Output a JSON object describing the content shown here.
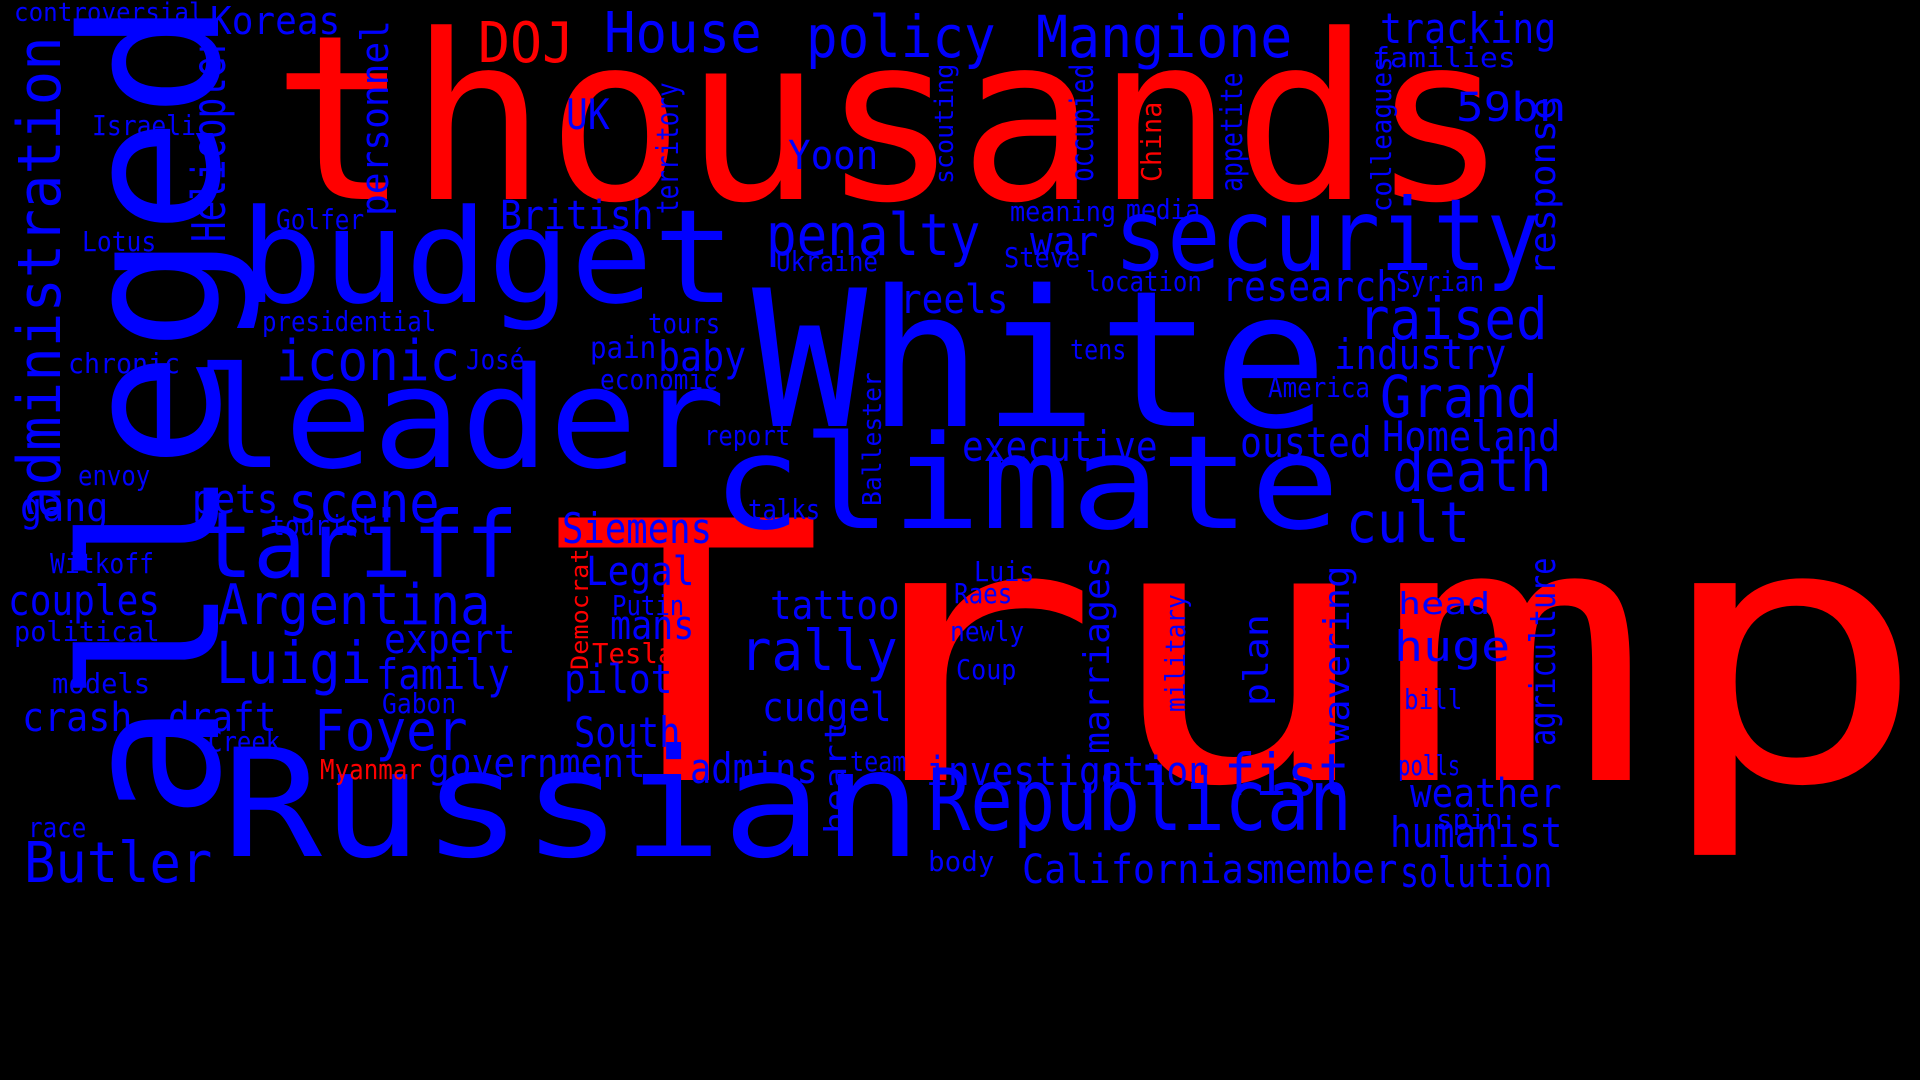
{
  "palette": {
    "background": "#000000",
    "highlight": "#ff0000",
    "base": "#0000ff"
  },
  "words": [
    {
      "text": "Trump",
      "color": "red"
    },
    {
      "text": "thousands",
      "color": "red"
    },
    {
      "text": "alleged",
      "color": "blue"
    },
    {
      "text": "White",
      "color": "blue"
    },
    {
      "text": "leader",
      "color": "blue"
    },
    {
      "text": "Russian",
      "color": "blue"
    },
    {
      "text": "budget",
      "color": "blue"
    },
    {
      "text": "climate",
      "color": "blue"
    },
    {
      "text": "security",
      "color": "blue"
    },
    {
      "text": "tariff",
      "color": "blue"
    },
    {
      "text": "Republican",
      "color": "blue"
    },
    {
      "text": "DOJ",
      "color": "red"
    },
    {
      "text": "House",
      "color": "blue"
    },
    {
      "text": "policy",
      "color": "blue"
    },
    {
      "text": "Mangione",
      "color": "blue"
    },
    {
      "text": "tracking",
      "color": "blue"
    },
    {
      "text": "families",
      "color": "blue"
    },
    {
      "text": "controversial",
      "color": "blue"
    },
    {
      "text": "Koreas",
      "color": "blue"
    },
    {
      "text": "administration",
      "color": "blue"
    },
    {
      "text": "Helicopter",
      "color": "blue"
    },
    {
      "text": "personnel",
      "color": "blue"
    },
    {
      "text": "Israeli",
      "color": "blue"
    },
    {
      "text": "UK",
      "color": "blue"
    },
    {
      "text": "59bn",
      "color": "blue"
    },
    {
      "text": "Yoon",
      "color": "blue"
    },
    {
      "text": "territory",
      "color": "blue"
    },
    {
      "text": "scouting",
      "color": "blue"
    },
    {
      "text": "occupied",
      "color": "blue"
    },
    {
      "text": "China",
      "color": "red"
    },
    {
      "text": "appetite",
      "color": "blue"
    },
    {
      "text": "colleagues",
      "color": "blue"
    },
    {
      "text": "response",
      "color": "blue"
    },
    {
      "text": "Golfer",
      "color": "blue"
    },
    {
      "text": "British",
      "color": "blue"
    },
    {
      "text": "meaning",
      "color": "blue"
    },
    {
      "text": "media",
      "color": "blue"
    },
    {
      "text": "Lotus",
      "color": "blue"
    },
    {
      "text": "penalty",
      "color": "blue"
    },
    {
      "text": "war",
      "color": "blue"
    },
    {
      "text": "Steve",
      "color": "blue"
    },
    {
      "text": "Ukraine",
      "color": "blue"
    },
    {
      "text": "location",
      "color": "blue"
    },
    {
      "text": "Syrian",
      "color": "blue"
    },
    {
      "text": "research",
      "color": "blue"
    },
    {
      "text": "reels",
      "color": "blue"
    },
    {
      "text": "raised",
      "color": "blue"
    },
    {
      "text": "presidential",
      "color": "blue"
    },
    {
      "text": "tours",
      "color": "blue"
    },
    {
      "text": "iconic",
      "color": "blue"
    },
    {
      "text": "pain",
      "color": "blue"
    },
    {
      "text": "baby",
      "color": "blue"
    },
    {
      "text": "tens",
      "color": "blue"
    },
    {
      "text": "industry",
      "color": "blue"
    },
    {
      "text": "chronic",
      "color": "blue"
    },
    {
      "text": "José",
      "color": "blue"
    },
    {
      "text": "economic",
      "color": "blue"
    },
    {
      "text": "America",
      "color": "blue"
    },
    {
      "text": "Grand",
      "color": "blue"
    },
    {
      "text": "Ballester",
      "color": "blue"
    },
    {
      "text": "report",
      "color": "blue"
    },
    {
      "text": "executive",
      "color": "blue"
    },
    {
      "text": "ousted",
      "color": "blue"
    },
    {
      "text": "Homeland",
      "color": "blue"
    },
    {
      "text": "envoy",
      "color": "blue"
    },
    {
      "text": "death",
      "color": "blue"
    },
    {
      "text": "pets",
      "color": "blue"
    },
    {
      "text": "scene",
      "color": "blue"
    },
    {
      "text": "gang",
      "color": "blue"
    },
    {
      "text": "talks",
      "color": "blue"
    },
    {
      "text": "tourist",
      "color": "blue"
    },
    {
      "text": "Siemens",
      "color": "blue"
    },
    {
      "text": "cult",
      "color": "blue"
    },
    {
      "text": "Witkoff",
      "color": "blue"
    },
    {
      "text": "Legal",
      "color": "blue"
    },
    {
      "text": "Democrat",
      "color": "red"
    },
    {
      "text": "couples",
      "color": "blue"
    },
    {
      "text": "Argentina",
      "color": "blue"
    },
    {
      "text": "tattoo",
      "color": "blue"
    },
    {
      "text": "Luis",
      "color": "blue"
    },
    {
      "text": "Raes",
      "color": "blue"
    },
    {
      "text": "marriages",
      "color": "blue"
    },
    {
      "text": "wavering",
      "color": "blue"
    },
    {
      "text": "agriculture",
      "color": "blue"
    },
    {
      "text": "political",
      "color": "blue"
    },
    {
      "text": "Putin",
      "color": "blue"
    },
    {
      "text": "mans",
      "color": "blue"
    },
    {
      "text": "head",
      "color": "blue"
    },
    {
      "text": "expert",
      "color": "blue"
    },
    {
      "text": "newly",
      "color": "blue"
    },
    {
      "text": "military",
      "color": "blue"
    },
    {
      "text": "plan",
      "color": "blue"
    },
    {
      "text": "huge",
      "color": "blue"
    },
    {
      "text": "Luigi",
      "color": "blue"
    },
    {
      "text": "Tesla",
      "color": "red"
    },
    {
      "text": "rally",
      "color": "blue"
    },
    {
      "text": "family",
      "color": "blue"
    },
    {
      "text": "Coup",
      "color": "blue"
    },
    {
      "text": "models",
      "color": "blue"
    },
    {
      "text": "Gabon",
      "color": "blue"
    },
    {
      "text": "pilot",
      "color": "blue"
    },
    {
      "text": "bill",
      "color": "blue"
    },
    {
      "text": "crash",
      "color": "blue"
    },
    {
      "text": "draft",
      "color": "blue"
    },
    {
      "text": "cudgel",
      "color": "blue"
    },
    {
      "text": "Foyer",
      "color": "blue"
    },
    {
      "text": "Creek",
      "color": "blue"
    },
    {
      "text": "South",
      "color": "blue"
    },
    {
      "text": "heart",
      "color": "blue"
    },
    {
      "text": "Myanmar",
      "color": "red"
    },
    {
      "text": "government",
      "color": "blue"
    },
    {
      "text": "admins",
      "color": "blue"
    },
    {
      "text": "team",
      "color": "blue"
    },
    {
      "text": "investigation",
      "color": "blue"
    },
    {
      "text": "fist",
      "color": "blue"
    },
    {
      "text": "polls",
      "color": "blue"
    },
    {
      "text": "weather",
      "color": "blue"
    },
    {
      "text": "spin",
      "color": "blue"
    },
    {
      "text": "race",
      "color": "blue"
    },
    {
      "text": "humanist",
      "color": "blue"
    },
    {
      "text": "Butler",
      "color": "blue"
    },
    {
      "text": "body",
      "color": "blue"
    },
    {
      "text": "Californias",
      "color": "blue"
    },
    {
      "text": "member",
      "color": "blue"
    },
    {
      "text": "solution",
      "color": "blue"
    }
  ]
}
